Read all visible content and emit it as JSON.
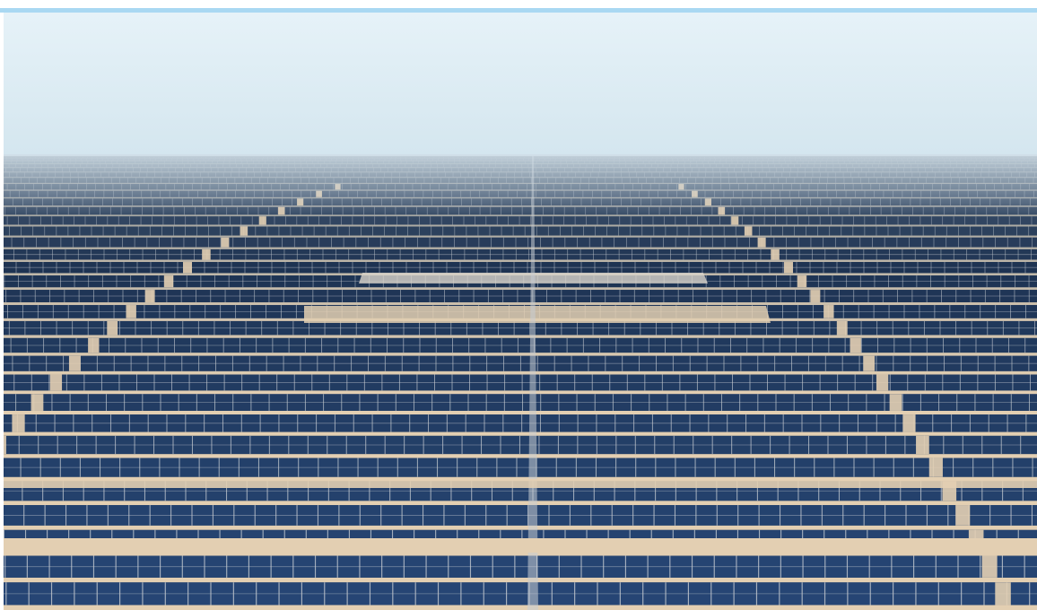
{
  "photo": {
    "subject": "aerial-solar-farm",
    "colors": {
      "accent_bar": "#a9d8f2",
      "sky_top": "#e6f2f8",
      "sky_horizon": "#d4e6ef",
      "sand": "#e3cfb2",
      "panel_dark": "#1e3352",
      "panel_mid": "#2a4f86",
      "panel_far": "#6f8193",
      "frame": "#c9ced3"
    }
  }
}
